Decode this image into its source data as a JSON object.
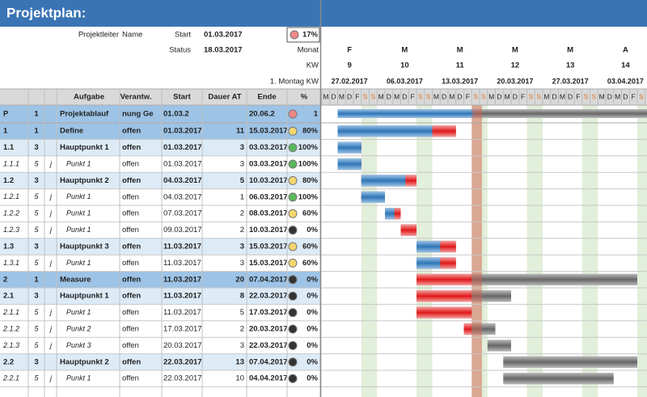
{
  "header": {
    "title": "Projektplan:",
    "leader_label": "Projektleiter",
    "leader": "Name",
    "start_label": "Start",
    "start": "01.03.2017",
    "status_label": "Status",
    "status": "18.03.2017",
    "progress": "17%"
  },
  "timeline": {
    "month_label": "Monat",
    "kw_label": "KW",
    "monday_label": "1. Montag KW",
    "weeks": [
      {
        "month": "F",
        "kw": "9",
        "monday": "27.02.2017"
      },
      {
        "month": "M",
        "kw": "10",
        "monday": "06.03.2017"
      },
      {
        "month": "M",
        "kw": "11",
        "monday": "13.03.2017"
      },
      {
        "month": "M",
        "kw": "12",
        "monday": "20.03.2017"
      },
      {
        "month": "M",
        "kw": "13",
        "monday": "27.03.2017"
      },
      {
        "month": "A",
        "kw": "14",
        "monday": "03.04.2017"
      }
    ],
    "day_letters": [
      "M",
      "D",
      "M",
      "D",
      "F",
      "S",
      "S"
    ]
  },
  "table": {
    "columns": [
      "Aufgabe",
      "Verantw.",
      "Start",
      "Dauer AT",
      "Ende",
      "%"
    ],
    "filter_row": {
      "id": "P",
      "level": "1",
      "task": "Projektablauf",
      "owner": "nung Ge",
      "start": "01.03.2",
      "end": "20.06.2",
      "pct": "1"
    },
    "rows": [
      {
        "id": "1",
        "level": "1",
        "task": "Define",
        "owner": "offen",
        "start": "01.03.2017",
        "days": 11,
        "end": "15.03.2017",
        "pct": "80%"
      },
      {
        "id": "1.1",
        "level": "3",
        "task": "Hauptpunkt 1",
        "owner": "offen",
        "start": "01.03.2017",
        "days": 3,
        "end": "03.03.2017",
        "pct": "100%"
      },
      {
        "id": "1.1.1",
        "level": "5",
        "marker": "j",
        "task": "Punkt 1",
        "owner": "offen",
        "start": "01.03.2017",
        "days": 3,
        "end": "03.03.2017",
        "pct": "100%"
      },
      {
        "id": "1.2",
        "level": "3",
        "task": "Hauptpunkt 2",
        "owner": "offen",
        "start": "04.03.2017",
        "days": 5,
        "end": "10.03.2017",
        "pct": "80%"
      },
      {
        "id": "1.2.1",
        "level": "5",
        "marker": "j",
        "task": "Punkt 1",
        "owner": "offen",
        "start": "04.03.2017",
        "days": 1,
        "end": "06.03.2017",
        "pct": "100%"
      },
      {
        "id": "1.2.2",
        "level": "5",
        "marker": "j",
        "task": "Punkt 1",
        "owner": "offen",
        "start": "07.03.2017",
        "days": 2,
        "end": "08.03.2017",
        "pct": "60%"
      },
      {
        "id": "1.2.3",
        "level": "5",
        "marker": "j",
        "task": "Punkt 1",
        "owner": "offen",
        "start": "09.03.2017",
        "days": 2,
        "end": "10.03.2017",
        "pct": "0%"
      },
      {
        "id": "1.3",
        "level": "3",
        "task": "Hauptpunkt 3",
        "owner": "offen",
        "start": "11.03.2017",
        "days": 3,
        "end": "15.03.2017",
        "pct": "60%"
      },
      {
        "id": "1.3.1",
        "level": "5",
        "marker": "j",
        "task": "Punkt 1",
        "owner": "offen",
        "start": "11.03.2017",
        "days": 3,
        "end": "15.03.2017",
        "pct": "60%"
      },
      {
        "id": "2",
        "level": "1",
        "task": "Measure",
        "owner": "offen",
        "start": "11.03.2017",
        "days": 20,
        "end": "07.04.2017",
        "pct": "0%"
      },
      {
        "id": "2.1",
        "level": "3",
        "task": "Hauptpunkt 1",
        "owner": "offen",
        "start": "11.03.2017",
        "days": 8,
        "end": "22.03.2017",
        "pct": "0%"
      },
      {
        "id": "2.1.1",
        "level": "5",
        "marker": "j",
        "task": "Punkt 1",
        "owner": "offen",
        "start": "11.03.2017",
        "days": 5,
        "end": "17.03.2017",
        "pct": "0%"
      },
      {
        "id": "2.1.2",
        "level": "5",
        "marker": "j",
        "task": "Punkt 2",
        "owner": "offen",
        "start": "17.03.2017",
        "days": 2,
        "end": "20.03.2017",
        "pct": "0%"
      },
      {
        "id": "2.1.3",
        "level": "5",
        "marker": "j",
        "task": "Punkt 3",
        "owner": "offen",
        "start": "20.03.2017",
        "days": 3,
        "end": "22.03.2017",
        "pct": "0%"
      },
      {
        "id": "2.2",
        "level": "3",
        "task": "Hauptpunkt 2",
        "owner": "offen",
        "start": "22.03.2017",
        "days": 13,
        "end": "07.04.2017",
        "pct": "0%"
      },
      {
        "id": "2.2.1",
        "level": "5",
        "marker": "j",
        "task": "Punkt 1",
        "owner": "offen",
        "start": "22.03.2017",
        "days": 10,
        "end": "04.04.2017",
        "pct": "0%"
      }
    ]
  }
}
